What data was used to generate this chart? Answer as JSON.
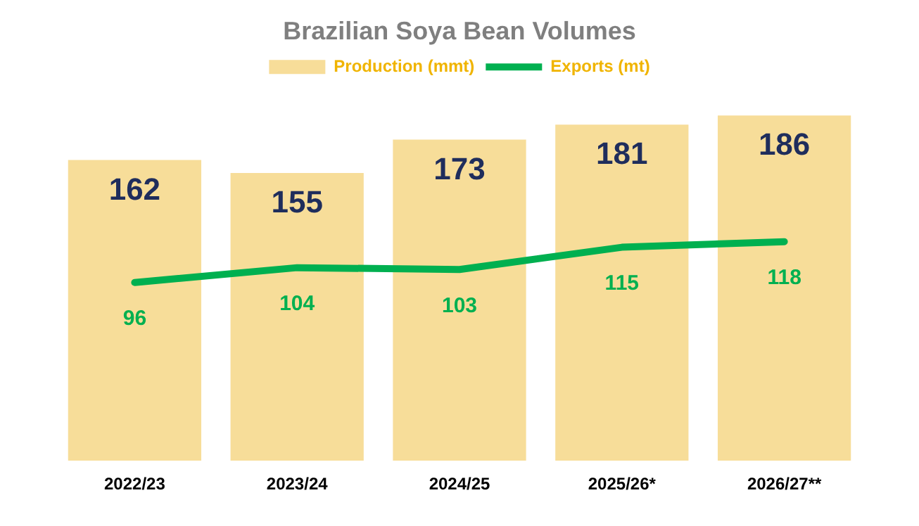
{
  "chart_data": {
    "type": "bar",
    "title": "Brazilian Soya Bean Volumes",
    "categories": [
      "2022/23",
      "2023/24",
      "2024/25",
      "2025/26*",
      "2026/27**"
    ],
    "series": [
      {
        "name": "Production (mmt)",
        "color": "#f7dd99",
        "values": [
          162,
          155,
          173,
          181,
          186
        ]
      },
      {
        "name": "Exports (mt)",
        "type": "line",
        "color": "#00b050",
        "values": [
          96,
          104,
          103,
          115,
          118
        ]
      }
    ],
    "data_labels": true,
    "legend": "top",
    "grid": false,
    "marker": "none",
    "line_style": "solid"
  }
}
